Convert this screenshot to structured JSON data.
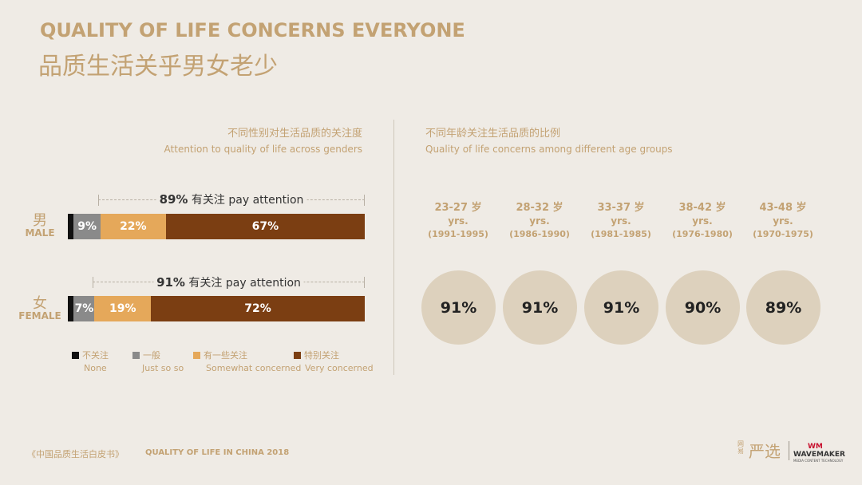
{
  "header": {
    "title_en": "QUALITY OF LIFE CONCERNS EVERYONE",
    "title_cn": "品质生活关乎男女老少"
  },
  "gender_panel": {
    "title_cn": "不同性别对生活品质的关注度",
    "title_en": "Attention to quality of life across genders"
  },
  "age_panel": {
    "title_cn": "不同年龄关注生活品质的比例",
    "title_en": "Quality of life concerns among different age groups"
  },
  "genders": [
    {
      "label_cn": "男",
      "label_en": "MALE",
      "total_label": "89%",
      "total_suffix": "有关注 pay attention",
      "segments": [
        {
          "value": 2,
          "label": ""
        },
        {
          "value": 9,
          "label": "9%"
        },
        {
          "value": 22,
          "label": "22%"
        },
        {
          "value": 67,
          "label": "67%"
        }
      ]
    },
    {
      "label_cn": "女",
      "label_en": "FEMALE",
      "total_label": "91%",
      "total_suffix": "有关注 pay attention",
      "segments": [
        {
          "value": 2,
          "label": ""
        },
        {
          "value": 7,
          "label": "7%"
        },
        {
          "value": 19,
          "label": "19%"
        },
        {
          "value": 72,
          "label": "72%"
        }
      ]
    }
  ],
  "legend": [
    {
      "cn": "不关注",
      "en": "None",
      "color": "#111111"
    },
    {
      "cn": "一般",
      "en": "Just so so",
      "color": "#8a8a8a"
    },
    {
      "cn": "有一些关注",
      "en": "Somewhat concerned",
      "color": "#e5a85a"
    },
    {
      "cn": "特别关注",
      "en": "Very concerned",
      "color": "#7b3e12"
    }
  ],
  "chart_data": [
    {
      "type": "bar",
      "title": "不同性别对生活品质的关注度 Attention to quality of life across genders",
      "categories": [
        "男 MALE",
        "女 FEMALE"
      ],
      "series": [
        {
          "name": "不关注 None",
          "values": [
            2,
            2
          ]
        },
        {
          "name": "一般 Just so so",
          "values": [
            9,
            7
          ]
        },
        {
          "name": "有一些关注 Somewhat concerned",
          "values": [
            22,
            19
          ]
        },
        {
          "name": "特别关注 Very concerned",
          "values": [
            67,
            72
          ]
        }
      ],
      "totals_pay_attention": [
        89,
        91
      ],
      "stacked": true,
      "orientation": "horizontal",
      "legend": "bottom"
    },
    {
      "type": "table",
      "title": "不同年龄关注生活品质的比例 Quality of life concerns among different age groups",
      "categories": [
        "23-27 岁",
        "28-32 岁",
        "33-37 岁",
        "38-42 岁",
        "43-48 岁"
      ],
      "values": [
        91,
        91,
        91,
        90,
        89
      ]
    }
  ],
  "age_groups": [
    {
      "range": "23-27 岁",
      "yrs": "yrs.",
      "years": "(1991-1995)",
      "value_label": "91%"
    },
    {
      "range": "28-32 岁",
      "yrs": "yrs.",
      "years": "(1986-1990)",
      "value_label": "91%"
    },
    {
      "range": "33-37 岁",
      "yrs": "yrs.",
      "years": "(1981-1985)",
      "value_label": "91%"
    },
    {
      "range": "38-42 岁",
      "yrs": "yrs.",
      "years": "(1976-1980)",
      "value_label": "90%"
    },
    {
      "range": "43-48 岁",
      "yrs": "yrs.",
      "years": "(1970-1975)",
      "value_label": "89%"
    }
  ],
  "footer": {
    "source_cn": "《中国品质生活白皮书》",
    "source_en": "QUALITY OF LIFE IN CHINA 2018"
  },
  "brand": {
    "netease": "网易",
    "yanxuan": "严选",
    "wm_logo": "WM",
    "wm_name": "WAVEMAKER",
    "wm_tag": "MEDIA CONTENT TECHNOLOGY"
  }
}
